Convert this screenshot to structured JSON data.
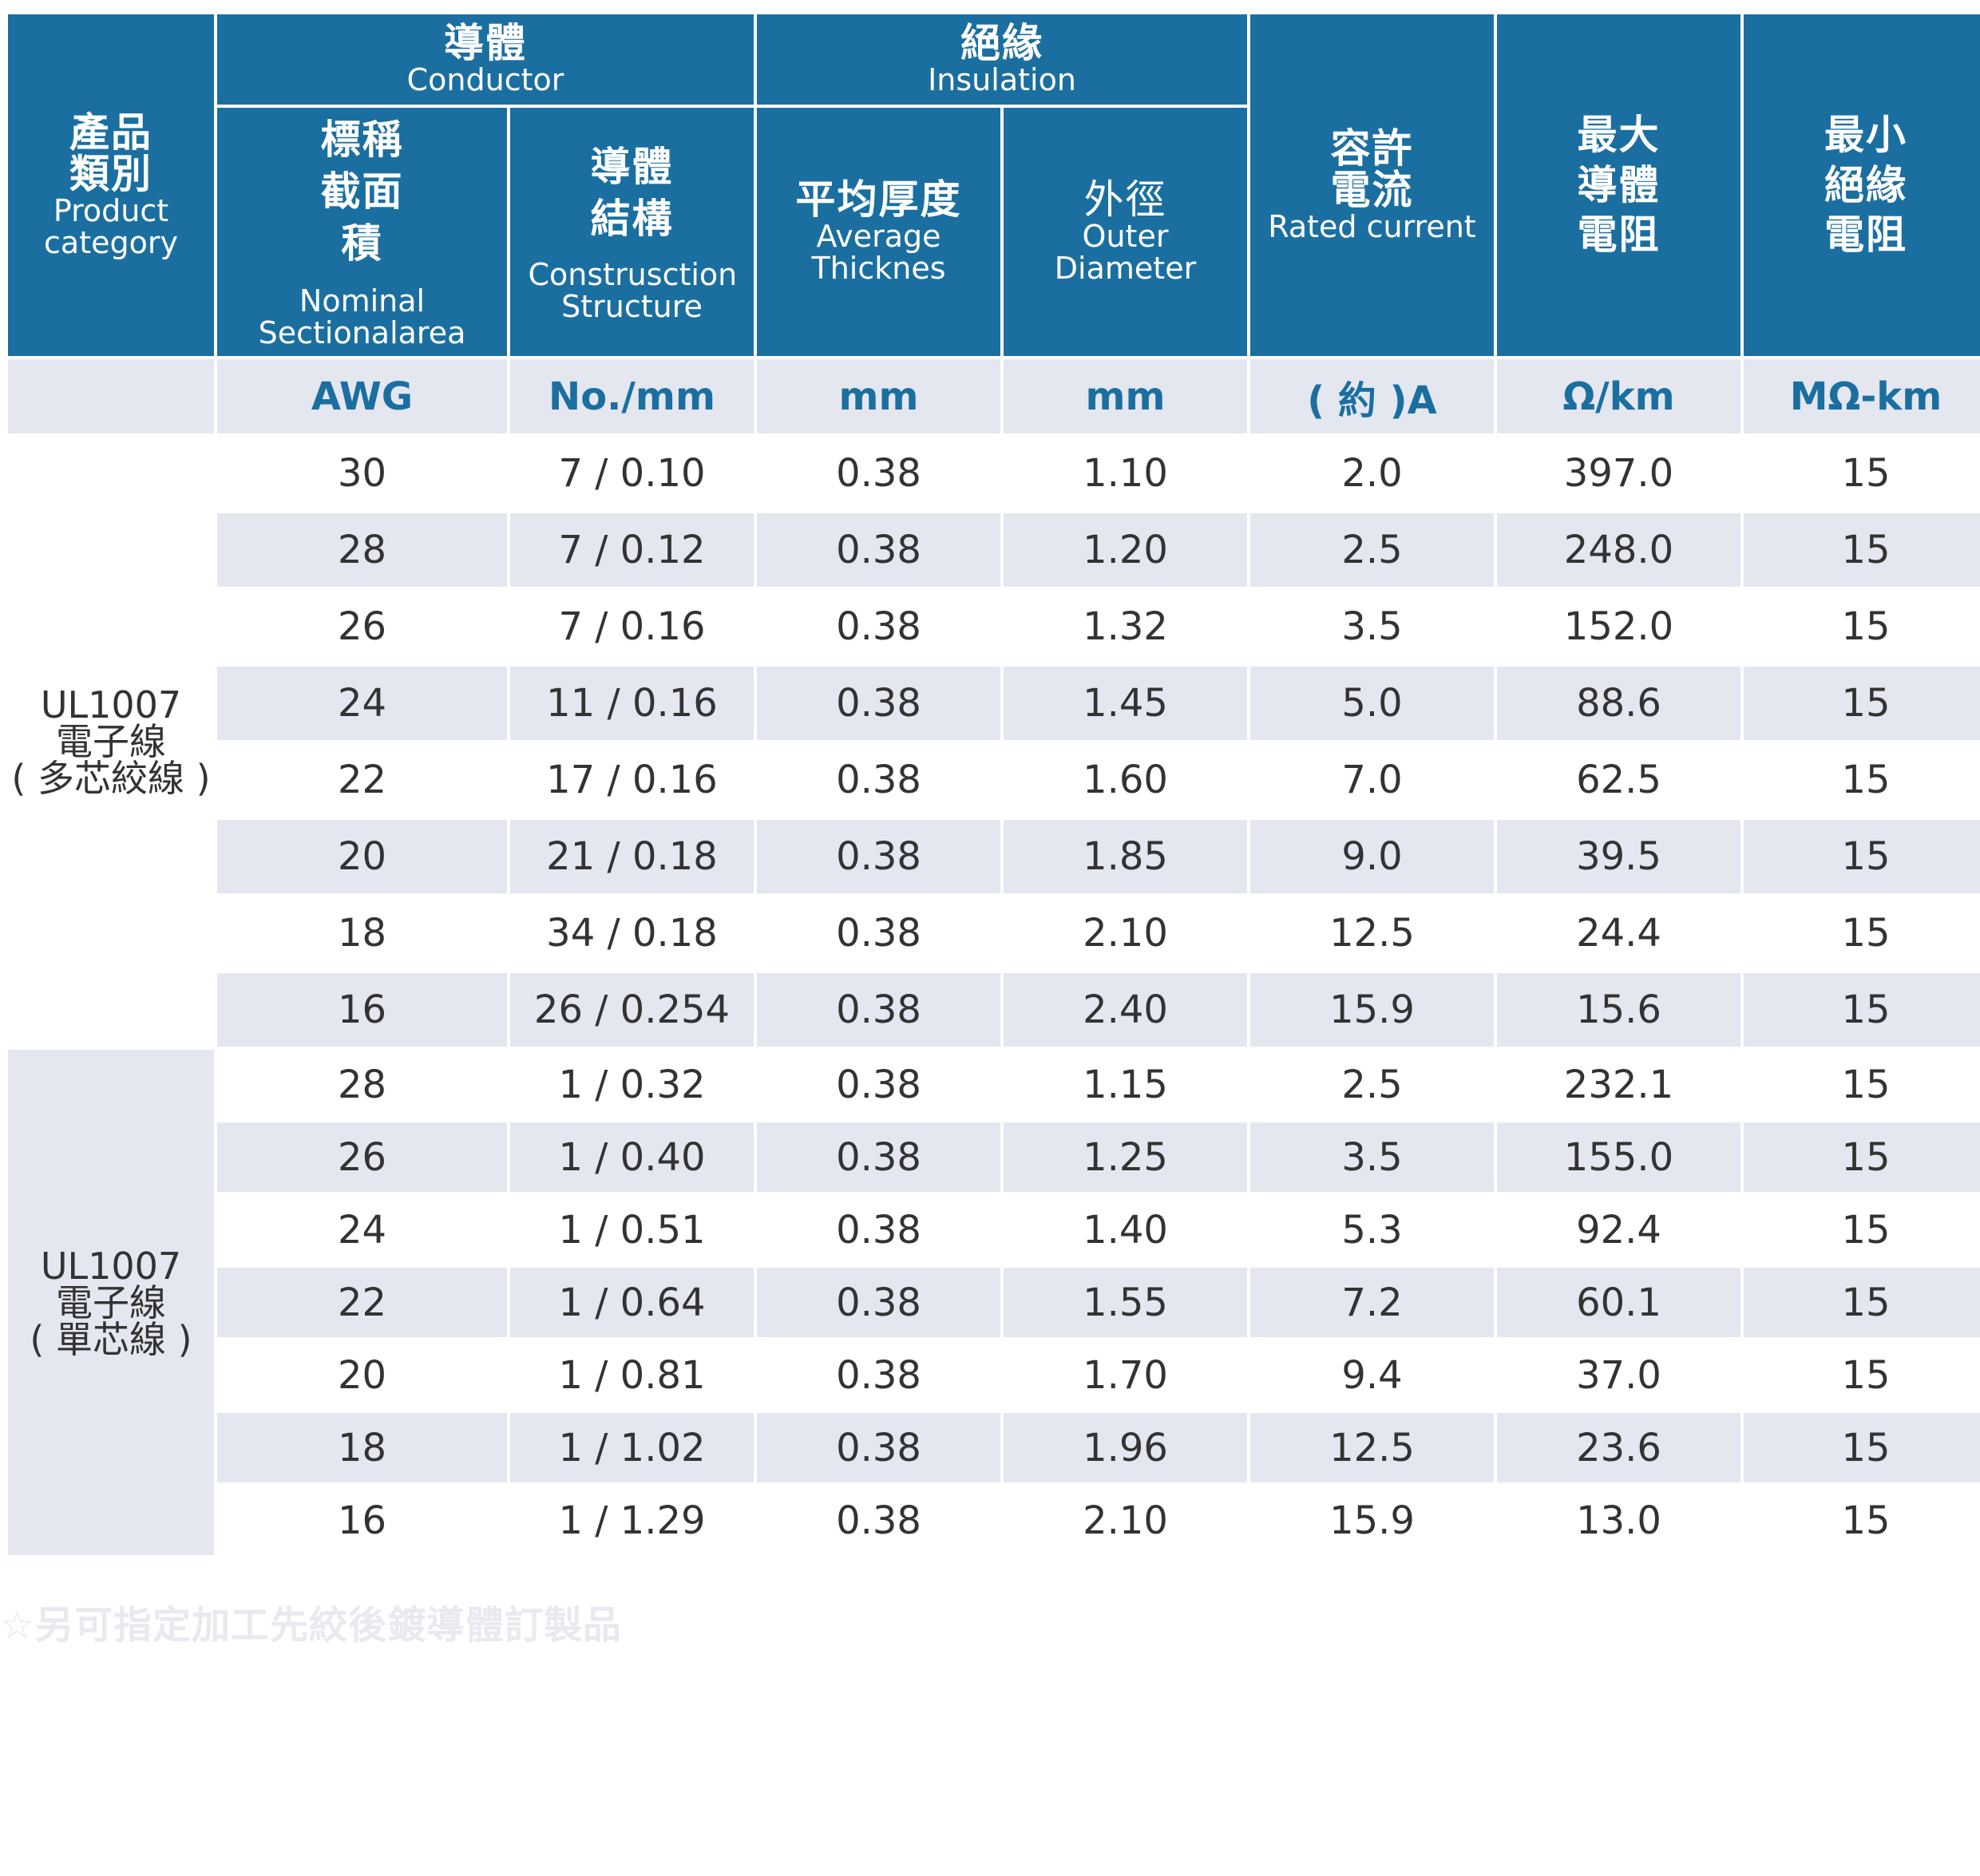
{
  "header": {
    "product_category_cn": "產品類別",
    "product_category_en1": "Product",
    "product_category_en2": "category",
    "conductor_cn": "導體",
    "conductor_en": "Conductor",
    "insulation_cn": "絕緣",
    "insulation_en": "Insulation",
    "nominal_cn": "標稱截面積",
    "nominal_en": "Nominal Sectionalarea",
    "construction_cn": "導體結構",
    "construction_en": "Construsction Structure",
    "thickness_cn": "平均厚度",
    "thickness_en": "Average Thicknes",
    "outer_cn": "外徑",
    "outer_en": "Outer Diameter",
    "rated_cn": "容許電流",
    "rated_en": "Rated current",
    "max_res_cn": "最大導體電阻",
    "min_res_cn": "最小絕緣電阻"
  },
  "units": [
    "AWG",
    "No./mm",
    "mm",
    "mm",
    "( 約 )A",
    "Ω/km",
    "MΩ-km"
  ],
  "groups": [
    {
      "category": [
        "UL1007",
        "電子線",
        "( 多芯絞線 )"
      ],
      "rows": [
        [
          "30",
          "7 / 0.10",
          "0.38",
          "1.10",
          "2.0",
          "397.0",
          "15"
        ],
        [
          "28",
          "7 / 0.12",
          "0.38",
          "1.20",
          "2.5",
          "248.0",
          "15"
        ],
        [
          "26",
          "7 / 0.16",
          "0.38",
          "1.32",
          "3.5",
          "152.0",
          "15"
        ],
        [
          "24",
          "11 / 0.16",
          "0.38",
          "1.45",
          "5.0",
          "88.6",
          "15"
        ],
        [
          "22",
          "17 / 0.16",
          "0.38",
          "1.60",
          "7.0",
          "62.5",
          "15"
        ],
        [
          "20",
          "21 / 0.18",
          "0.38",
          "1.85",
          "9.0",
          "39.5",
          "15"
        ],
        [
          "18",
          "34 / 0.18",
          "0.38",
          "2.10",
          "12.5",
          "24.4",
          "15"
        ],
        [
          "16",
          "26 / 0.254",
          "0.38",
          "2.40",
          "15.9",
          "15.6",
          "15"
        ]
      ]
    },
    {
      "category": [
        "UL1007",
        "電子線",
        "( 單芯線 )"
      ],
      "rows": [
        [
          "28",
          "1 / 0.32",
          "0.38",
          "1.15",
          "2.5",
          "232.1",
          "15"
        ],
        [
          "26",
          "1 / 0.40",
          "0.38",
          "1.25",
          "3.5",
          "155.0",
          "15"
        ],
        [
          "24",
          "1 / 0.51",
          "0.38",
          "1.40",
          "5.3",
          "92.4",
          "15"
        ],
        [
          "22",
          "1 / 0.64",
          "0.38",
          "1.55",
          "7.2",
          "60.1",
          "15"
        ],
        [
          "20",
          "1 / 0.81",
          "0.38",
          "1.70",
          "9.4",
          "37.0",
          "15"
        ],
        [
          "18",
          "1 / 1.02",
          "0.38",
          "1.96",
          "12.5",
          "23.6",
          "15"
        ],
        [
          "16",
          "1 / 1.29",
          "0.38",
          "2.10",
          "15.9",
          "13.0",
          "15"
        ]
      ]
    }
  ],
  "footnote": "☆另可指定加工先絞後鍍導體訂製品"
}
